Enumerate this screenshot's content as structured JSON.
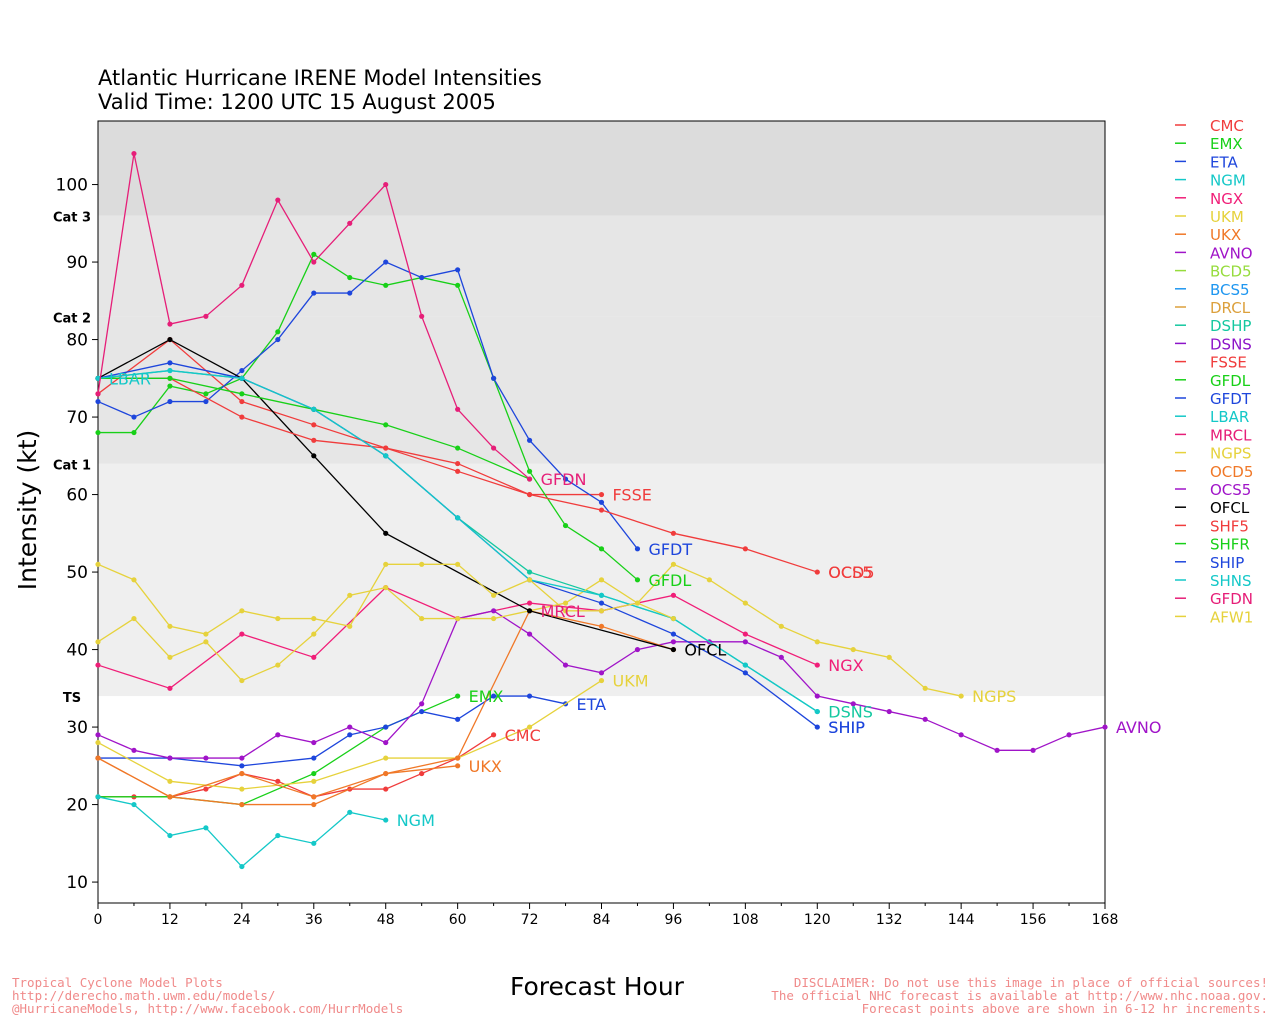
{
  "header": {
    "title_line1": "Atlantic Hurricane IRENE Model Intensities",
    "title_line2": "Valid Time: 1200 UTC 15 August 2005"
  },
  "footer": {
    "left_lines": [
      "Tropical Cyclone Model Plots",
      "http://derecho.math.uwm.edu/models/",
      "@HurricaneModels, http://www.facebook.com/HurrModels"
    ],
    "xlabel": "Forecast Hour",
    "right_lines": [
      "DISCLAIMER: Do not use this image in place of official sources!",
      "The official NHC forecast is available at http://www.nhc.noaa.gov.",
      "Forecast points above are shown in 6-12 hr increments."
    ]
  },
  "chart_data": {
    "type": "line",
    "title": "Atlantic Hurricane IRENE Model Intensities",
    "subtitle": "Valid Time: 1200 UTC 15 August 2005",
    "xlabel": "Forecast Hour",
    "ylabel": "Intensity (kt)",
    "xlim": [
      0,
      168
    ],
    "ylim": [
      7.3,
      108.2
    ],
    "xticks": [
      0,
      12,
      24,
      36,
      48,
      60,
      72,
      84,
      96,
      108,
      120,
      132,
      144,
      156,
      168
    ],
    "yticks": [
      10,
      20,
      30,
      40,
      50,
      60,
      70,
      80,
      90,
      100
    ],
    "bands": [
      {
        "label": "TS",
        "from": 34,
        "to": 64,
        "color": "#efefef"
      },
      {
        "label": "Cat 1",
        "from": 64,
        "to": 83,
        "color": "#e6e6e6"
      },
      {
        "label": "Cat 2",
        "from": 83,
        "to": 96,
        "color": "#e6e6e6"
      },
      {
        "label": "Cat 3",
        "from": 96,
        "to": 108.2,
        "color": "#dcdcdc"
      }
    ],
    "legend_position": "right",
    "series": [
      {
        "name": "CMC",
        "color": "#f03c3c",
        "x": [
          0,
          6,
          12,
          18,
          24,
          30,
          36,
          42,
          48,
          54,
          60,
          66
        ],
        "y": [
          21,
          21,
          21,
          22,
          24,
          23,
          21,
          22,
          22,
          24,
          26,
          29
        ],
        "label_shown": true
      },
      {
        "name": "EMX",
        "color": "#18d018",
        "x": [
          0,
          12,
          24,
          36,
          48,
          60
        ],
        "y": [
          21,
          21,
          20,
          24,
          30,
          34
        ],
        "label_shown": true
      },
      {
        "name": "ETA",
        "color": "#1e46dc",
        "x": [
          0,
          12,
          24,
          36,
          42,
          48,
          54,
          60,
          66,
          72,
          78
        ],
        "y": [
          26,
          26,
          25,
          26,
          29,
          30,
          32,
          31,
          34,
          34,
          33
        ],
        "label_shown": true
      },
      {
        "name": "NGM",
        "color": "#14c8c8",
        "x": [
          0,
          6,
          12,
          18,
          24,
          30,
          36,
          42,
          48
        ],
        "y": [
          21,
          20,
          16,
          17,
          12,
          16,
          15,
          19,
          18
        ],
        "label_shown": true
      },
      {
        "name": "NGX",
        "color": "#f01e78",
        "x": [
          0,
          12,
          24,
          36,
          48,
          60,
          72,
          84,
          96,
          108,
          120
        ],
        "y": [
          38,
          35,
          42,
          39,
          48,
          44,
          46,
          45,
          47,
          42,
          38
        ],
        "label_shown": true
      },
      {
        "name": "UKM",
        "color": "#e6d23c",
        "x": [
          0,
          12,
          24,
          36,
          48,
          60,
          72,
          84
        ],
        "y": [
          28,
          23,
          22,
          23,
          26,
          26,
          30,
          36
        ],
        "label_shown": true
      },
      {
        "name": "UKX",
        "color": "#f07828",
        "x": [
          0,
          12,
          24,
          36,
          48,
          60
        ],
        "y": [
          26,
          21,
          20,
          20,
          24,
          25
        ],
        "label_shown": true
      },
      {
        "name": "AVNO",
        "color": "#a014c8",
        "x": [
          0,
          6,
          12,
          18,
          24,
          30,
          36,
          42,
          48,
          54,
          60,
          66,
          72,
          78,
          84,
          90,
          96,
          102,
          108,
          114,
          120,
          126,
          132,
          138,
          144,
          150,
          156,
          162,
          168
        ],
        "y": [
          29,
          27,
          26,
          26,
          26,
          29,
          28,
          30,
          28,
          33,
          44,
          45,
          42,
          38,
          37,
          40,
          41,
          41,
          41,
          39,
          34,
          33,
          32,
          31,
          29,
          27,
          27,
          29,
          30
        ],
        "label_shown": true
      },
      {
        "name": "BCD5",
        "color": "#96dc3c",
        "x": [],
        "y": [],
        "label_shown": false
      },
      {
        "name": "BCS5",
        "color": "#1e96f0",
        "x": [],
        "y": [],
        "label_shown": false
      },
      {
        "name": "DRCL",
        "color": "#dca03c",
        "x": [],
        "y": [],
        "label_shown": false
      },
      {
        "name": "DSHP",
        "color": "#14c8a0",
        "x": [
          0,
          12,
          24,
          36,
          48,
          60,
          72,
          84,
          96,
          108,
          120
        ],
        "y": [
          75,
          76,
          75,
          71,
          65,
          57,
          50,
          47,
          44,
          38,
          32
        ],
        "label_shown": false
      },
      {
        "name": "DSNS",
        "color": "#8c14c8",
        "x": [],
        "y": [],
        "label_shown": false
      },
      {
        "name": "FSSE",
        "color": "#f03c3c",
        "x": [
          0,
          12,
          24,
          36,
          48,
          60,
          72,
          84
        ],
        "y": [
          73,
          80,
          72,
          69,
          66,
          63,
          60,
          60
        ],
        "label_shown": true
      },
      {
        "name": "GFDL",
        "color": "#18d018",
        "x": [
          0,
          6,
          12,
          18,
          24,
          30,
          36,
          42,
          48,
          54,
          60,
          66,
          72,
          78,
          84,
          90
        ],
        "y": [
          68,
          68,
          74,
          73,
          75,
          81,
          91,
          88,
          87,
          88,
          87,
          75,
          63,
          56,
          53,
          49
        ],
        "label_shown": true
      },
      {
        "name": "GFDT",
        "color": "#1e46dc",
        "x": [
          0,
          6,
          12,
          18,
          24,
          30,
          36,
          42,
          48,
          54,
          60,
          66,
          72,
          78,
          84,
          90
        ],
        "y": [
          72,
          70,
          72,
          72,
          76,
          80,
          86,
          86,
          90,
          88,
          89,
          75,
          67,
          62,
          59,
          53
        ],
        "label_shown": true
      },
      {
        "name": "LBAR",
        "color": "#14c8c8",
        "x": [
          0
        ],
        "y": [
          75
        ],
        "label_shown": true
      },
      {
        "name": "MRCL",
        "color": "#e61e78",
        "x": [],
        "y": [],
        "label_shown": true
      },
      {
        "name": "NGPS",
        "color": "#e6d23c",
        "x": [
          0,
          6,
          12,
          18,
          24,
          30,
          36,
          42,
          48,
          54,
          60,
          66,
          72,
          78,
          84,
          90,
          96,
          102,
          108,
          114,
          120,
          126,
          132,
          138,
          144
        ],
        "y": [
          41,
          44,
          39,
          41,
          36,
          38,
          42,
          47,
          48,
          44,
          44,
          44,
          45,
          46,
          49,
          46,
          51,
          49,
          46,
          43,
          41,
          40,
          39,
          35,
          34
        ],
        "label_shown": true
      },
      {
        "name": "OCD5",
        "color": "#f07828",
        "x": [
          0,
          12,
          24,
          36,
          48,
          60,
          72,
          84,
          96
        ],
        "y": [
          26,
          21,
          24,
          21,
          24,
          26,
          45,
          43,
          40
        ],
        "label_shown": false
      },
      {
        "name": "OCS5",
        "color": "#a014c8",
        "x": [],
        "y": [],
        "label_shown": false
      },
      {
        "name": "OFCL",
        "color": "#000000",
        "x": [
          0,
          12,
          24,
          36,
          48,
          72,
          96
        ],
        "y": [
          75,
          80,
          75,
          65,
          55,
          45,
          40
        ],
        "label_shown": true
      },
      {
        "name": "SHF5",
        "color": "#f03c3c",
        "x": [
          0,
          12,
          24,
          36,
          48,
          60,
          72,
          84,
          96,
          108,
          120
        ],
        "y": [
          75,
          75,
          70,
          67,
          66,
          64,
          60,
          58,
          55,
          53,
          50
        ],
        "label_shown": false
      },
      {
        "name": "SHFR",
        "color": "#18d018",
        "x": [
          0,
          12,
          24,
          36,
          48,
          60,
          72
        ],
        "y": [
          75,
          75,
          73,
          71,
          69,
          66,
          62
        ],
        "label_shown": false
      },
      {
        "name": "SHIP",
        "color": "#1e46dc",
        "x": [
          0,
          12,
          24,
          36,
          48,
          60,
          72,
          84,
          96,
          108,
          120
        ],
        "y": [
          75,
          77,
          75,
          71,
          65,
          57,
          49,
          46,
          42,
          37,
          30
        ],
        "label_shown": true
      },
      {
        "name": "SHNS",
        "color": "#14c8c8",
        "x": [
          0,
          12,
          24,
          36,
          48,
          60,
          72,
          84,
          96,
          108,
          120
        ],
        "y": [
          75,
          76,
          75,
          71,
          65,
          57,
          49,
          47,
          44,
          38,
          32
        ],
        "label_shown": false
      },
      {
        "name": "GFDN",
        "color": "#e61e78",
        "x": [
          0,
          6,
          12,
          18,
          24,
          30,
          36,
          42,
          48,
          54,
          60,
          66,
          72
        ],
        "y": [
          73,
          104,
          82,
          83,
          87,
          98,
          90,
          95,
          100,
          83,
          71,
          66,
          62
        ],
        "label_shown": true
      },
      {
        "name": "AFW1",
        "color": "#e6d23c",
        "x": [
          0,
          6,
          12,
          18,
          24,
          30,
          36,
          42,
          48,
          54,
          60,
          66,
          72,
          78,
          84,
          90,
          96
        ],
        "y": [
          51,
          49,
          43,
          42,
          45,
          44,
          44,
          43,
          51,
          51,
          51,
          47,
          49,
          45,
          45,
          46,
          44
        ],
        "label_shown": false
      }
    ],
    "end_labels": [
      {
        "text": "CMC",
        "series": "CMC",
        "x": 66,
        "y": 29
      },
      {
        "text": "EMX",
        "series": "EMX",
        "x": 60,
        "y": 34
      },
      {
        "text": "ETA",
        "series": "ETA",
        "x": 78,
        "y": 33
      },
      {
        "text": "NGM",
        "series": "NGM",
        "x": 48,
        "y": 18
      },
      {
        "text": "NGX",
        "series": "NGX",
        "x": 120,
        "y": 38
      },
      {
        "text": "UKM",
        "series": "UKM",
        "x": 84,
        "y": 36
      },
      {
        "text": "UKX",
        "series": "UKX",
        "x": 60,
        "y": 25
      },
      {
        "text": "AVNO",
        "series": "AVNO",
        "x": 168,
        "y": 30
      },
      {
        "text": "FSSE",
        "series": "FSSE",
        "x": 84,
        "y": 60
      },
      {
        "text": "GFDL",
        "series": "GFDL",
        "x": 90,
        "y": 49
      },
      {
        "text": "GFDT",
        "series": "GFDT",
        "x": 90,
        "y": 53
      },
      {
        "text": "LBAR",
        "series": "LBAR",
        "x": 0,
        "y": 75
      },
      {
        "text": "MRCL",
        "series": "MRCL",
        "x": 72,
        "y": 45
      },
      {
        "text": "NGPS",
        "series": "NGPS",
        "x": 144,
        "y": 34
      },
      {
        "text": "OFCL",
        "series": "OFCL",
        "x": 96,
        "y": 40
      },
      {
        "text": "SHIP",
        "series": "SHIP",
        "x": 120,
        "y": 30
      },
      {
        "text": "SHIP",
        "series": "SHIP",
        "x": 120,
        "y": 30
      },
      {
        "text": "DSNS",
        "series": "DSHP",
        "x": 120,
        "y": 32
      },
      {
        "text": "GFDN",
        "series": "GFDN",
        "x": 72,
        "y": 62
      },
      {
        "text": "OCS5",
        "series": "SHF5",
        "x": 120,
        "y": 50
      },
      {
        "text": "OCD5",
        "series": "SHF5",
        "x": 120,
        "y": 50
      }
    ]
  }
}
